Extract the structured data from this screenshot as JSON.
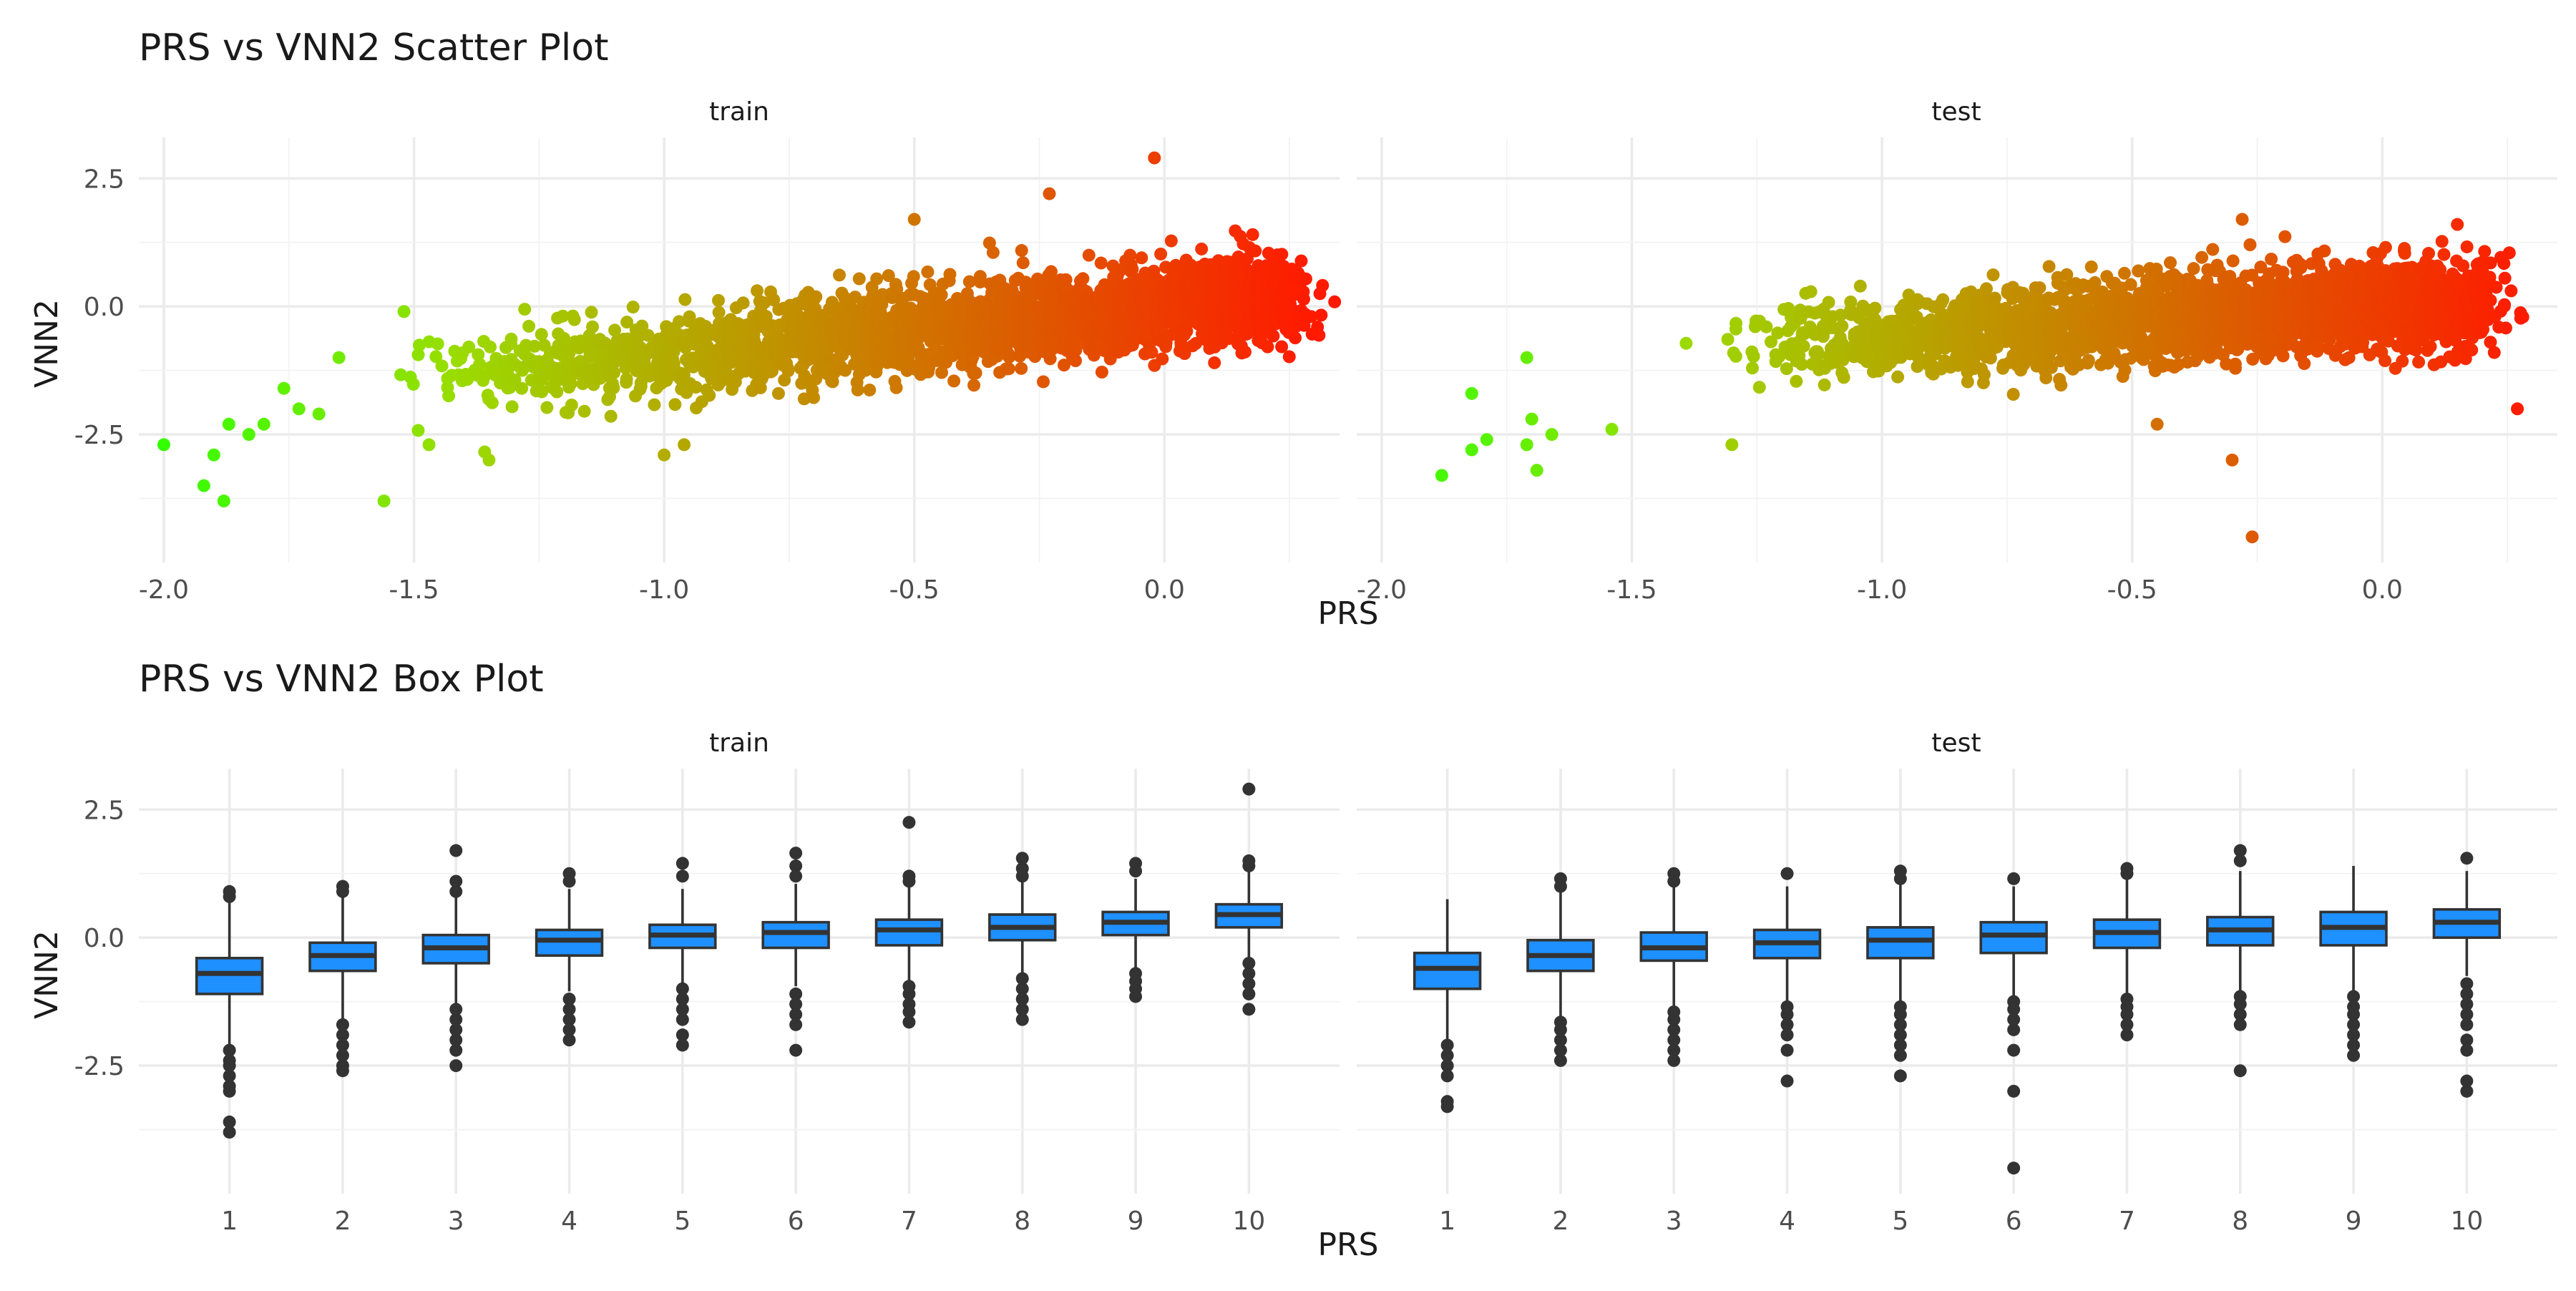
{
  "colors": {
    "background": "#ffffff",
    "grid": "#ebebeb",
    "box_fill": "#1e90ff",
    "box_line": "#333333",
    "outlier": "#333333",
    "gradient_low": "#33ff00",
    "gradient_mid": "#99dd00",
    "gradient_high": "#ff1a00"
  },
  "chart_data": [
    {
      "type": "scatter",
      "title": "PRS vs VNN2 Scatter Plot",
      "xlabel": "PRS",
      "ylabel": "VNN2",
      "facets": [
        "train",
        "test"
      ],
      "xlim": [
        -2.05,
        0.35
      ],
      "ylim": [
        -5.0,
        3.3
      ],
      "x_ticks": [
        -2.0,
        -1.5,
        -1.0,
        -0.5,
        0.0
      ],
      "x_tick_labels": [
        "-2.0",
        "-1.5",
        "-1.0",
        "-0.5",
        "0.0"
      ],
      "y_ticks": [
        2.5,
        0.0,
        -2.5
      ],
      "y_tick_labels": [
        "2.5",
        "0.0",
        "-2.5"
      ],
      "grid": true,
      "color_by": "PRS",
      "color_scale": [
        "#33ff00",
        "#99dd00",
        "#ff1a00"
      ],
      "series": [
        {
          "facet": "train",
          "approx_trend": {
            "slope": 0.95,
            "intercept": 0.0,
            "spread_sd": 0.55,
            "x_range": [
              -1.5,
              0.25
            ]
          },
          "highlighted_points": [
            [
              -2.0,
              -2.7
            ],
            [
              -1.92,
              -3.5
            ],
            [
              -1.88,
              -3.8
            ],
            [
              -1.9,
              -2.9
            ],
            [
              -1.87,
              -2.3
            ],
            [
              -1.83,
              -2.5
            ],
            [
              -1.8,
              -2.3
            ],
            [
              -1.76,
              -1.6
            ],
            [
              -1.73,
              -2.0
            ],
            [
              -1.69,
              -2.1
            ],
            [
              -1.65,
              -1.0
            ],
            [
              -1.56,
              -3.8
            ],
            [
              -1.52,
              -0.1
            ],
            [
              -1.47,
              -2.7
            ],
            [
              -1.35,
              -3.0
            ],
            [
              -1.0,
              -2.9
            ],
            [
              -0.96,
              -2.7
            ],
            [
              -0.5,
              1.7
            ],
            [
              -0.23,
              2.2
            ],
            [
              -0.02,
              2.9
            ],
            [
              0.1,
              -1.1
            ],
            [
              0.26,
              0.3
            ],
            [
              0.22,
              0.7
            ]
          ]
        },
        {
          "facet": "test",
          "approx_trend": {
            "slope": 0.6,
            "intercept": 0.0,
            "spread_sd": 0.55,
            "x_range": [
              -1.3,
              0.2
            ]
          },
          "highlighted_points": [
            [
              -1.88,
              -3.3
            ],
            [
              -1.82,
              -1.7
            ],
            [
              -1.82,
              -2.8
            ],
            [
              -1.79,
              -2.6
            ],
            [
              -1.71,
              -1.0
            ],
            [
              -1.71,
              -2.7
            ],
            [
              -1.69,
              -3.2
            ],
            [
              -1.7,
              -2.2
            ],
            [
              -1.66,
              -2.5
            ],
            [
              -1.54,
              -2.4
            ],
            [
              -1.3,
              -2.7
            ],
            [
              -0.26,
              -4.5
            ],
            [
              -0.3,
              -3.0
            ],
            [
              -0.45,
              -2.3
            ],
            [
              0.27,
              -2.0
            ],
            [
              0.2,
              0.7
            ],
            [
              0.15,
              1.6
            ],
            [
              -0.28,
              1.7
            ]
          ]
        }
      ]
    },
    {
      "type": "box",
      "title": "PRS vs VNN2 Box Plot",
      "xlabel": "PRS",
      "ylabel": "VNN2",
      "facets": [
        "train",
        "test"
      ],
      "categories": [
        "1",
        "2",
        "3",
        "4",
        "5",
        "6",
        "7",
        "8",
        "9",
        "10"
      ],
      "ylim": [
        -5.0,
        3.3
      ],
      "y_ticks": [
        2.5,
        0.0,
        -2.5
      ],
      "y_tick_labels": [
        "2.5",
        "0.0",
        "-2.5"
      ],
      "grid": true,
      "series": [
        {
          "facet": "train",
          "boxes": [
            {
              "category": "1",
              "q1": -1.1,
              "median": -0.7,
              "q3": -0.4,
              "whisker_low": -2.1,
              "whisker_high": 0.7,
              "outliers": [
                0.9,
                0.8,
                -2.2,
                -2.4,
                -2.5,
                -2.7,
                -2.9,
                -3.0,
                -3.6,
                -3.8
              ]
            },
            {
              "category": "2",
              "q1": -0.65,
              "median": -0.35,
              "q3": -0.1,
              "whisker_low": -1.6,
              "whisker_high": 0.9,
              "outliers": [
                1.0,
                0.9,
                -1.7,
                -1.9,
                -2.1,
                -2.3,
                -2.5,
                -2.6
              ]
            },
            {
              "category": "3",
              "q1": -0.5,
              "median": -0.2,
              "q3": 0.05,
              "whisker_low": -1.3,
              "whisker_high": 0.8,
              "outliers": [
                1.7,
                1.1,
                0.9,
                -1.4,
                -1.6,
                -1.8,
                -2.0,
                -2.2,
                -2.5
              ]
            },
            {
              "category": "4",
              "q1": -0.35,
              "median": -0.05,
              "q3": 0.15,
              "whisker_low": -1.05,
              "whisker_high": 0.95,
              "outliers": [
                1.25,
                1.1,
                -1.2,
                -1.4,
                -1.6,
                -1.8,
                -2.0
              ]
            },
            {
              "category": "5",
              "q1": -0.2,
              "median": 0.05,
              "q3": 0.25,
              "whisker_low": -0.9,
              "whisker_high": 0.95,
              "outliers": [
                1.45,
                1.2,
                -1.0,
                -1.2,
                -1.4,
                -1.6,
                -1.9,
                -2.1
              ]
            },
            {
              "category": "6",
              "q1": -0.2,
              "median": 0.1,
              "q3": 0.3,
              "whisker_low": -0.95,
              "whisker_high": 1.05,
              "outliers": [
                1.65,
                1.4,
                1.2,
                -1.1,
                -1.3,
                -1.5,
                -1.7,
                -2.2
              ]
            },
            {
              "category": "7",
              "q1": -0.15,
              "median": 0.15,
              "q3": 0.35,
              "whisker_low": -0.85,
              "whisker_high": 1.0,
              "outliers": [
                2.25,
                1.2,
                1.1,
                -0.95,
                -1.1,
                -1.3,
                -1.45,
                -1.65
              ]
            },
            {
              "category": "8",
              "q1": -0.05,
              "median": 0.2,
              "q3": 0.45,
              "whisker_low": -0.7,
              "whisker_high": 1.1,
              "outliers": [
                1.55,
                1.35,
                1.2,
                -0.8,
                -1.0,
                -1.2,
                -1.4,
                -1.6
              ]
            },
            {
              "category": "9",
              "q1": 0.05,
              "median": 0.3,
              "q3": 0.5,
              "whisker_low": -0.6,
              "whisker_high": 1.15,
              "outliers": [
                1.45,
                1.3,
                -0.7,
                -0.85,
                -1.0,
                -1.15
              ]
            },
            {
              "category": "10",
              "q1": 0.2,
              "median": 0.45,
              "q3": 0.65,
              "whisker_low": -0.4,
              "whisker_high": 1.35,
              "outliers": [
                2.9,
                1.5,
                1.4,
                -0.5,
                -0.7,
                -0.9,
                -1.1,
                -1.4
              ]
            }
          ]
        },
        {
          "facet": "test",
          "boxes": [
            {
              "category": "1",
              "q1": -1.0,
              "median": -0.6,
              "q3": -0.3,
              "whisker_low": -2.0,
              "whisker_high": 0.75,
              "outliers": [
                -2.1,
                -2.3,
                -2.5,
                -2.7,
                -3.2,
                -3.3
              ]
            },
            {
              "category": "2",
              "q1": -0.65,
              "median": -0.35,
              "q3": -0.05,
              "whisker_low": -1.55,
              "whisker_high": 0.95,
              "outliers": [
                1.15,
                1.0,
                -1.65,
                -1.8,
                -2.0,
                -2.2,
                -2.4
              ]
            },
            {
              "category": "3",
              "q1": -0.45,
              "median": -0.2,
              "q3": 0.1,
              "whisker_low": -1.35,
              "whisker_high": 1.05,
              "outliers": [
                1.25,
                1.1,
                -1.45,
                -1.6,
                -1.8,
                -2.0,
                -2.2,
                -2.4
              ]
            },
            {
              "category": "4",
              "q1": -0.4,
              "median": -0.1,
              "q3": 0.15,
              "whisker_low": -1.25,
              "whisker_high": 1.0,
              "outliers": [
                1.25,
                -1.35,
                -1.5,
                -1.7,
                -1.9,
                -2.2,
                -2.8
              ]
            },
            {
              "category": "5",
              "q1": -0.4,
              "median": -0.05,
              "q3": 0.2,
              "whisker_low": -1.25,
              "whisker_high": 1.05,
              "outliers": [
                1.3,
                1.15,
                -1.35,
                -1.5,
                -1.7,
                -1.9,
                -2.1,
                -2.3,
                -2.7
              ]
            },
            {
              "category": "6",
              "q1": -0.3,
              "median": 0.05,
              "q3": 0.3,
              "whisker_low": -1.15,
              "whisker_high": 1.0,
              "outliers": [
                1.15,
                -1.25,
                -1.4,
                -1.6,
                -1.8,
                -2.2,
                -3.0,
                -4.5
              ]
            },
            {
              "category": "7",
              "q1": -0.2,
              "median": 0.1,
              "q3": 0.35,
              "whisker_low": -1.1,
              "whisker_high": 1.15,
              "outliers": [
                1.35,
                1.25,
                -1.2,
                -1.35,
                -1.5,
                -1.7,
                -1.9
              ]
            },
            {
              "category": "8",
              "q1": -0.15,
              "median": 0.15,
              "q3": 0.4,
              "whisker_low": -1.05,
              "whisker_high": 1.3,
              "outliers": [
                1.7,
                1.5,
                -1.15,
                -1.3,
                -1.5,
                -1.7,
                -2.6
              ]
            },
            {
              "category": "9",
              "q1": -0.15,
              "median": 0.2,
              "q3": 0.5,
              "whisker_low": -1.05,
              "whisker_high": 1.4,
              "outliers": [
                -1.15,
                -1.35,
                -1.5,
                -1.7,
                -1.9,
                -2.1,
                -2.3
              ]
            },
            {
              "category": "10",
              "q1": 0.0,
              "median": 0.3,
              "q3": 0.55,
              "whisker_low": -0.75,
              "whisker_high": 1.3,
              "outliers": [
                1.55,
                -0.9,
                -1.1,
                -1.3,
                -1.5,
                -1.7,
                -2.0,
                -2.2,
                -2.8,
                -3.0
              ]
            }
          ]
        }
      ]
    }
  ]
}
